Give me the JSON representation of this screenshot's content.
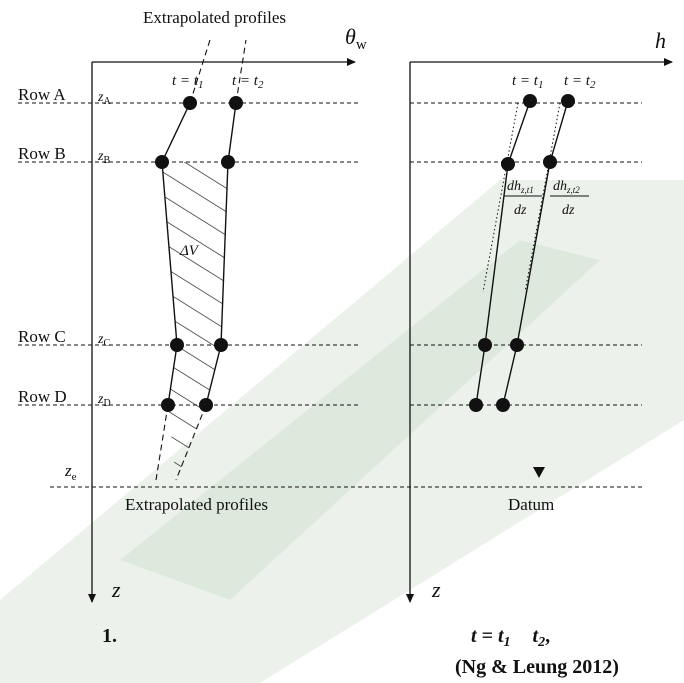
{
  "left_panel": {
    "axis_x_label": "θ",
    "axis_x_sub": "w",
    "axis_y_label": "z",
    "top_label": "Extrapolated profiles",
    "bottom_label": "Extrapolated profiles",
    "area_label": "ΔV",
    "time_labels": [
      "t = t",
      "t = t"
    ],
    "time_subs": [
      "1",
      "2"
    ],
    "rows": [
      {
        "label": "Row A",
        "z": "z",
        "z_sub": "A"
      },
      {
        "label": "Row B",
        "z": "z",
        "z_sub": "B"
      },
      {
        "label": "Row C",
        "z": "z",
        "z_sub": "C"
      },
      {
        "label": "Row D",
        "z": "z",
        "z_sub": "D"
      },
      {
        "label": "",
        "z": "z",
        "z_sub": "e"
      }
    ]
  },
  "right_panel": {
    "axis_x_label": "h",
    "axis_y_label": "z",
    "time_labels": [
      "t = t",
      "t = t"
    ],
    "time_subs": [
      "1",
      "2"
    ],
    "gradients": [
      {
        "num": "dh",
        "num_sub": "z,t1",
        "den": "dz"
      },
      {
        "num": "dh",
        "num_sub": "z,t2",
        "den": "dz"
      }
    ],
    "datum_label": "Datum"
  },
  "caption": {
    "left": "1.",
    "right_line1_a": "t = t",
    "right_line1_sub1": "1",
    "right_line1_b": "t",
    "right_line1_sub2": "2",
    "right_line1_c": ",",
    "right_line2": "(Ng & Leung 2012)"
  },
  "colors": {
    "ink": "#111111",
    "watermark": "#c7d9c4"
  }
}
